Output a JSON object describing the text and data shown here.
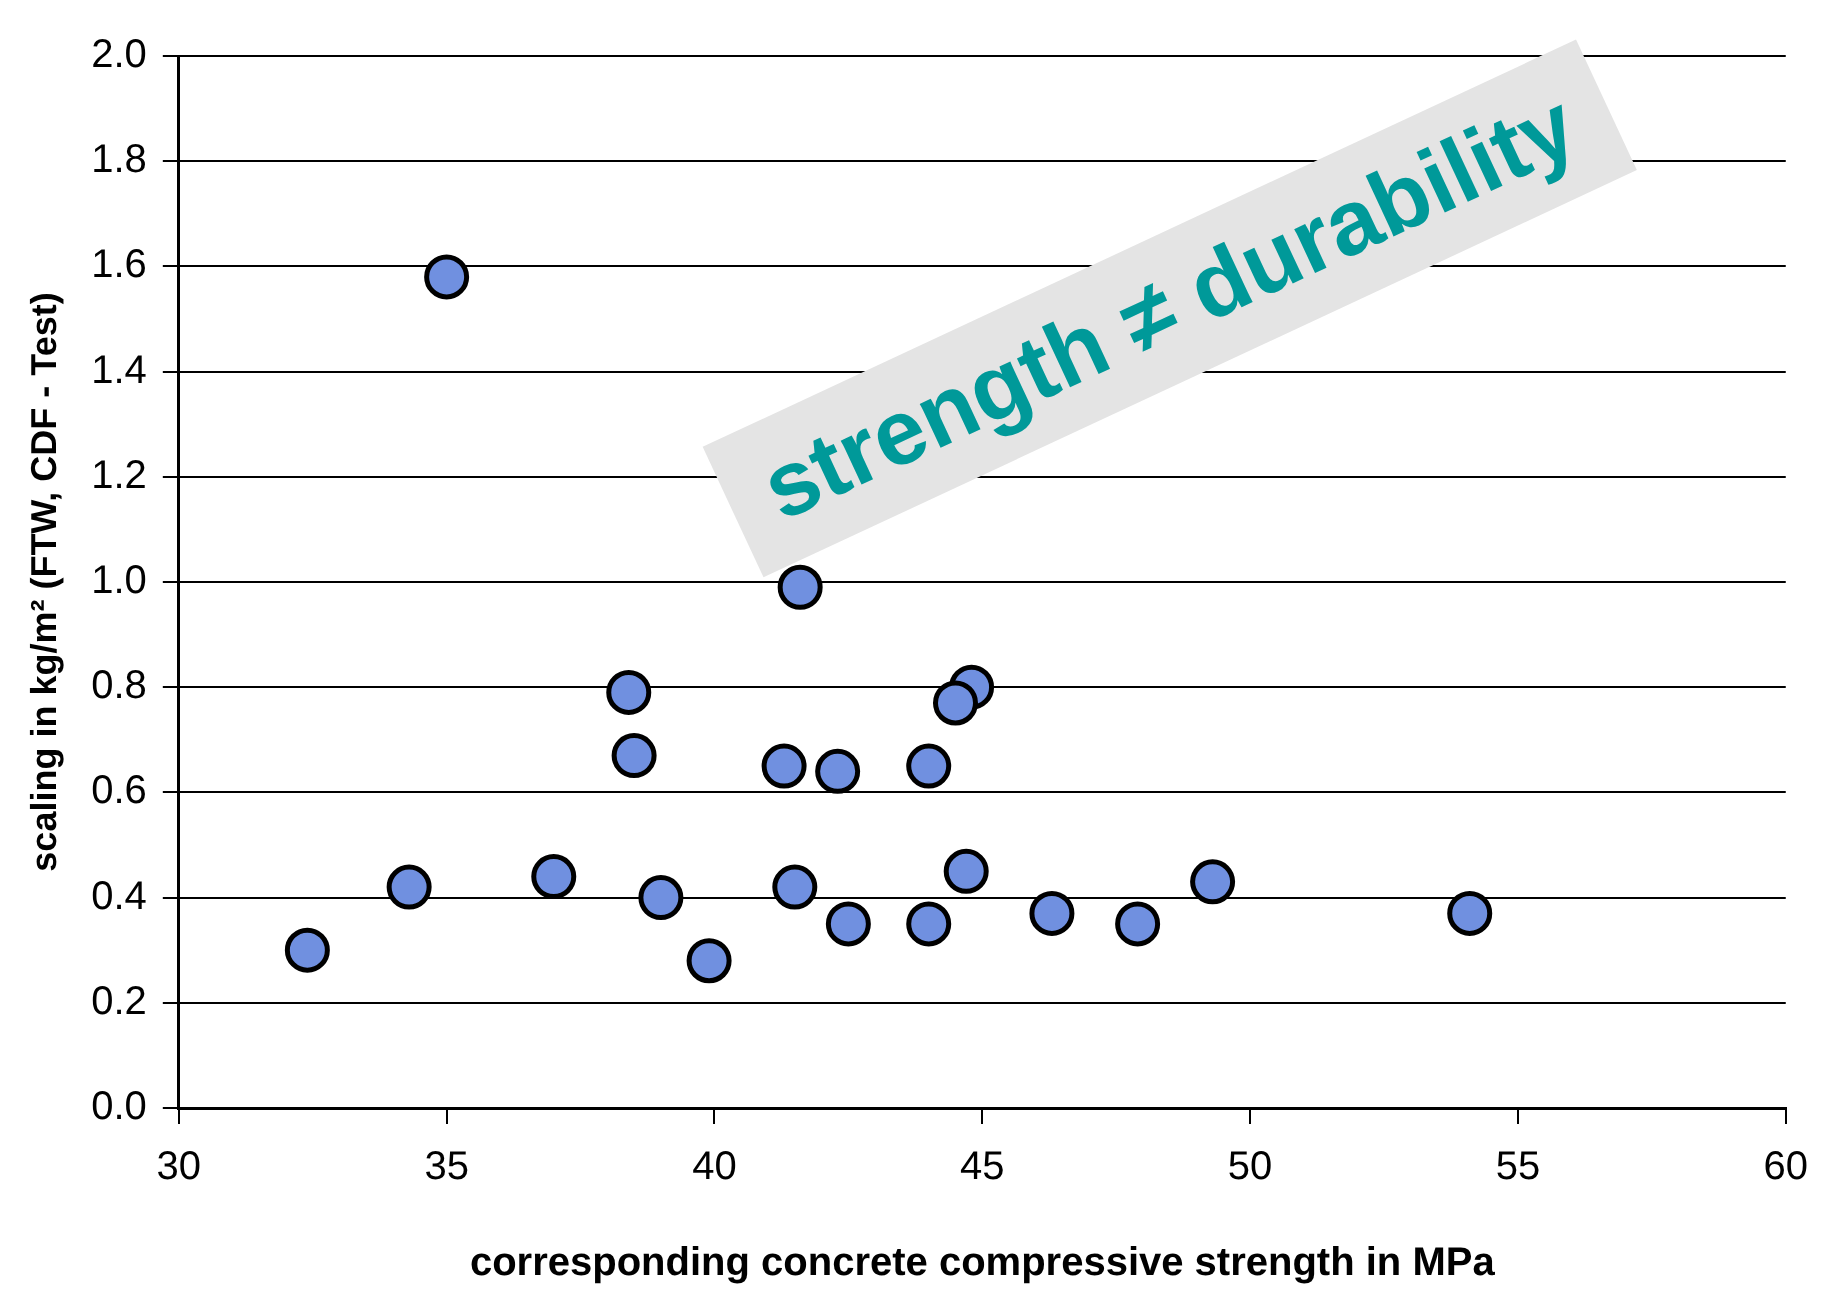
{
  "chart_data": {
    "type": "scatter",
    "xlabel": "corresponding concrete compressive strength in MPa",
    "ylabel": "scaling in kg/m² (FTW, CDF - Test)",
    "annotations": [
      "strength ≠ durability"
    ],
    "xlim": [
      30,
      60
    ],
    "xticks": [
      30,
      35,
      40,
      45,
      50,
      55,
      60
    ],
    "ylim": [
      0,
      2
    ],
    "yticks": [
      {
        "value": 0,
        "label": "0.0"
      },
      {
        "value": 0.2,
        "label": "0.2"
      },
      {
        "value": 0.4,
        "label": "0.4"
      },
      {
        "value": 0.6,
        "label": "0.6"
      },
      {
        "value": 0.8,
        "label": "0.8"
      },
      {
        "value": 1,
        "label": "1.0"
      },
      {
        "value": 1.2,
        "label": "1.2"
      },
      {
        "value": 1.4,
        "label": "1.4"
      },
      {
        "value": 1.6,
        "label": "1.6"
      },
      {
        "value": 1.8,
        "label": "1.8"
      },
      {
        "value": 2,
        "label": "2.0"
      }
    ],
    "grid": "y",
    "legend": false,
    "marker": "circle",
    "series": [
      {
        "color": "#7090e0",
        "x": [
          32.4,
          34.3,
          35.0,
          37.0,
          38.4,
          38.5,
          39.0,
          39.9,
          41.3,
          41.5,
          41.6,
          42.3,
          42.5,
          44.0,
          44.0,
          44.7,
          44.8,
          44.5,
          46.3,
          47.9,
          49.3,
          54.1
        ],
        "values": [
          0.3,
          0.42,
          1.58,
          0.44,
          0.79,
          0.67,
          0.4,
          0.28,
          0.65,
          0.42,
          0.99,
          0.64,
          0.35,
          0.65,
          0.35,
          0.45,
          0.8,
          0.77,
          0.37,
          0.35,
          0.43,
          0.37
        ]
      }
    ]
  }
}
